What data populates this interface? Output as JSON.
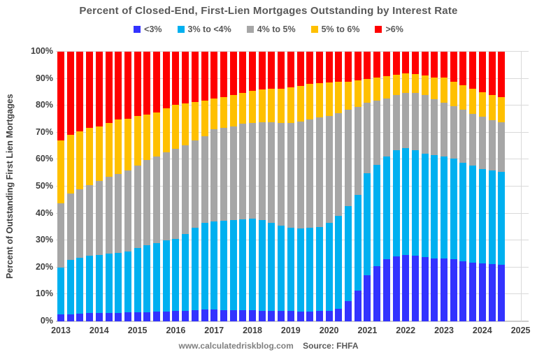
{
  "title": "Percent of Closed-End, First-Lien Mortgages Outstanding by Interest Rate",
  "footer": {
    "site": "www.calculatedriskblog.com",
    "source": "Source: FHFA"
  },
  "y_axis": {
    "title": "Percent of Outstanding First Lien Mortgages",
    "tick_labels": [
      "0%",
      "10%",
      "20%",
      "30%",
      "40%",
      "50%",
      "60%",
      "70%",
      "80%",
      "90%",
      "100%"
    ],
    "tick_values": [
      0,
      10,
      20,
      30,
      40,
      50,
      60,
      70,
      80,
      90,
      100
    ]
  },
  "x_axis": {
    "year_labels": [
      "2013",
      "2014",
      "2015",
      "2016",
      "2017",
      "2018",
      "2019",
      "2020",
      "2021",
      "2022",
      "2023",
      "2024",
      "2025"
    ]
  },
  "colors": {
    "lt3": "#3333ff",
    "r3to4": "#00b0f0",
    "r4to5": "#a6a6a6",
    "r5to6": "#ffc000",
    "gt6": "#ff0000",
    "gridline": "#d9d9d9",
    "title_text": "#595959",
    "axis_text": "#3f3f3f"
  },
  "chart_data": {
    "type": "bar",
    "stacked": true,
    "stacked_to_100": true,
    "title": "Percent of Closed-End, First-Lien Mortgages Outstanding by Interest Rate",
    "xlabel": "",
    "ylabel": "Percent of Outstanding First Lien Mortgages",
    "ylim": [
      0,
      100
    ],
    "grid": true,
    "legend_position": "top",
    "source": "FHFA",
    "categories": [
      "2013Q1",
      "2013Q2",
      "2013Q3",
      "2013Q4",
      "2014Q1",
      "2014Q2",
      "2014Q3",
      "2014Q4",
      "2015Q1",
      "2015Q2",
      "2015Q3",
      "2015Q4",
      "2016Q1",
      "2016Q2",
      "2016Q3",
      "2016Q4",
      "2017Q1",
      "2017Q2",
      "2017Q3",
      "2017Q4",
      "2018Q1",
      "2018Q2",
      "2018Q3",
      "2018Q4",
      "2019Q1",
      "2019Q2",
      "2019Q3",
      "2019Q4",
      "2020Q1",
      "2020Q2",
      "2020Q3",
      "2020Q4",
      "2021Q1",
      "2021Q2",
      "2021Q3",
      "2021Q4",
      "2022Q1",
      "2022Q2",
      "2022Q3",
      "2022Q4",
      "2023Q1",
      "2023Q2",
      "2023Q3",
      "2023Q4",
      "2024Q1",
      "2024Q2",
      "2024Q3"
    ],
    "series": [
      {
        "name": "<3%",
        "color": "#3333ff",
        "values": [
          2.5,
          2.7,
          2.9,
          3.1,
          3.1,
          3.2,
          3.2,
          3.3,
          3.4,
          3.5,
          3.6,
          3.7,
          3.9,
          4.0,
          4.2,
          4.4,
          4.3,
          4.2,
          4.2,
          4.1,
          4.1,
          4.0,
          4.0,
          3.9,
          3.8,
          3.7,
          3.7,
          3.8,
          4.0,
          4.6,
          7.5,
          11.5,
          17.0,
          20.5,
          23.0,
          24.0,
          24.5,
          24.3,
          23.8,
          23.3,
          23.2,
          23.0,
          22.3,
          21.8,
          21.4,
          21.2,
          21.0
        ]
      },
      {
        "name": "3% to <4%",
        "color": "#00b0f0",
        "values": [
          17.5,
          20.1,
          20.7,
          21.3,
          21.6,
          21.9,
          22.2,
          22.7,
          23.7,
          24.7,
          25.4,
          26.4,
          26.8,
          28.5,
          30.4,
          32.2,
          32.7,
          33.0,
          33.3,
          33.7,
          34.0,
          33.5,
          32.6,
          31.6,
          30.8,
          30.7,
          30.9,
          31.3,
          32.6,
          34.6,
          35.3,
          35.5,
          37.9,
          37.5,
          38.1,
          39.6,
          39.7,
          39.3,
          38.5,
          38.4,
          38.0,
          37.3,
          36.5,
          35.9,
          35.2,
          34.8,
          34.4
        ]
      },
      {
        "name": "4% to 5%",
        "color": "#a6a6a6",
        "values": [
          23.9,
          24.5,
          25.5,
          26.2,
          27.5,
          28.5,
          29.3,
          30.0,
          30.6,
          31.7,
          32.1,
          32.6,
          33.3,
          32.8,
          32.6,
          32.1,
          34.2,
          34.6,
          34.9,
          35.4,
          35.6,
          36.4,
          37.3,
          38.2,
          39.1,
          39.7,
          40.2,
          40.5,
          39.7,
          38.0,
          35.6,
          32.5,
          26.1,
          23.9,
          21.6,
          20.3,
          20.5,
          21.1,
          21.6,
          20.8,
          19.8,
          19.5,
          19.7,
          19.3,
          19.2,
          18.7,
          18.4
        ]
      },
      {
        "name": "5% to 6%",
        "color": "#ffc000",
        "values": [
          23.3,
          21.9,
          21.4,
          21.2,
          20.2,
          20.1,
          20.1,
          19.2,
          18.4,
          16.8,
          16.3,
          16.4,
          16.4,
          15.5,
          14.2,
          13.2,
          11.5,
          11.4,
          11.5,
          11.4,
          11.9,
          12.1,
          12.3,
          12.7,
          13.0,
          13.2,
          13.4,
          12.8,
          12.3,
          11.6,
          10.6,
          10.0,
          8.9,
          8.4,
          8.3,
          7.5,
          7.2,
          6.9,
          7.3,
          8.0,
          9.3,
          9.0,
          9.2,
          9.2,
          9.2,
          9.2,
          9.3
        ]
      },
      {
        "name": ">6%",
        "color": "#ff0000",
        "values": [
          32.8,
          30.8,
          29.5,
          28.2,
          27.6,
          26.3,
          25.2,
          24.8,
          23.9,
          23.3,
          22.6,
          20.9,
          19.6,
          19.2,
          18.6,
          18.1,
          17.3,
          16.8,
          16.1,
          15.4,
          14.4,
          14.0,
          13.8,
          13.6,
          13.3,
          12.7,
          11.8,
          11.6,
          11.4,
          11.2,
          11.0,
          10.5,
          10.1,
          9.7,
          9.0,
          8.6,
          8.1,
          8.4,
          8.8,
          9.5,
          9.7,
          11.2,
          12.3,
          13.8,
          15.0,
          16.1,
          16.9
        ]
      }
    ]
  }
}
